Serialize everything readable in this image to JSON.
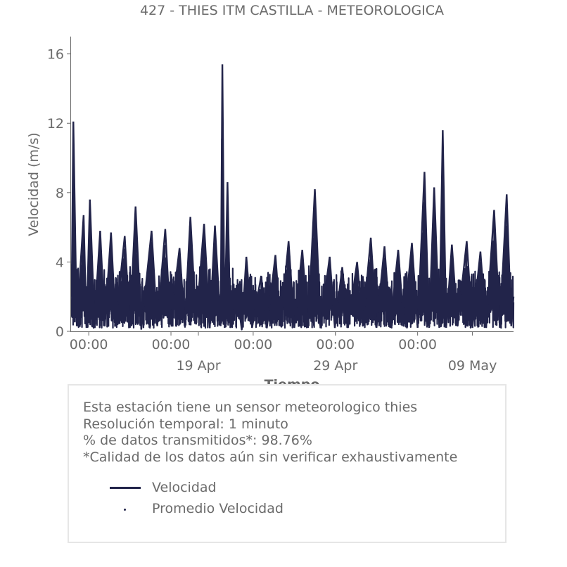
{
  "chart_data": {
    "type": "line",
    "title": "427 - THIES ITM CASTILLA - METEOROLOGICA",
    "xlabel": "Tiempo",
    "ylabel": "Velocidad (m/s)",
    "ylim": [
      0,
      17
    ],
    "yticks": [
      0,
      4,
      8,
      12,
      16
    ],
    "xlim": [
      "2025-04-09T17:00",
      "2025-05-12T00:00"
    ],
    "xticks_time": [
      {
        "t": "2025-04-11T00:00",
        "label": "00:00"
      },
      {
        "t": "2025-04-17T00:00",
        "label": "00:00"
      },
      {
        "t": "2025-04-23T00:00",
        "label": "00:00"
      },
      {
        "t": "2025-04-29T00:00",
        "label": "00:00"
      },
      {
        "t": "2025-05-05T00:00",
        "label": "00:00"
      }
    ],
    "xticks_date": [
      {
        "t": "2025-04-19T00:00",
        "label": "19 Apr"
      },
      {
        "t": "2025-04-29T00:00",
        "label": "29 Apr"
      },
      {
        "t": "2025-05-09T00:00",
        "label": "09 May"
      }
    ],
    "grid": false,
    "series": [
      {
        "name": "Velocidad",
        "color": "#22244a",
        "style": "line",
        "points": [
          [
            "2025-04-09T18:00",
            2.0
          ],
          [
            "2025-04-09T21:00",
            12.1
          ],
          [
            "2025-04-10T03:00",
            0.3
          ],
          [
            "2025-04-10T15:00",
            6.7
          ],
          [
            "2025-04-10T20:00",
            0.2
          ],
          [
            "2025-04-11T02:00",
            7.6
          ],
          [
            "2025-04-11T10:00",
            0.5
          ],
          [
            "2025-04-11T20:00",
            5.8
          ],
          [
            "2025-04-12T04:00",
            0.3
          ],
          [
            "2025-04-12T15:00",
            5.7
          ],
          [
            "2025-04-12T23:00",
            0.4
          ],
          [
            "2025-04-13T15:00",
            5.5
          ],
          [
            "2025-04-14T00:00",
            0.2
          ],
          [
            "2025-04-14T10:00",
            7.2
          ],
          [
            "2025-04-14T20:00",
            0.1
          ],
          [
            "2025-04-15T14:00",
            5.8
          ],
          [
            "2025-04-16T00:00",
            0.3
          ],
          [
            "2025-04-16T14:00",
            5.9
          ],
          [
            "2025-04-16T23:00",
            0.4
          ],
          [
            "2025-04-17T15:00",
            4.8
          ],
          [
            "2025-04-18T00:00",
            0.3
          ],
          [
            "2025-04-18T10:00",
            6.6
          ],
          [
            "2025-04-18T20:00",
            0.4
          ],
          [
            "2025-04-19T10:00",
            6.2
          ],
          [
            "2025-04-19T20:00",
            0.2
          ],
          [
            "2025-04-20T05:00",
            6.1
          ],
          [
            "2025-04-20T15:00",
            0.3
          ],
          [
            "2025-04-20T18:00",
            15.4
          ],
          [
            "2025-04-20T22:00",
            0.2
          ],
          [
            "2025-04-21T03:00",
            8.6
          ],
          [
            "2025-04-21T08:00",
            0.2
          ],
          [
            "2025-04-21T20:00",
            2.1
          ],
          [
            "2025-04-22T04:00",
            0.1
          ],
          [
            "2025-04-22T12:00",
            4.3
          ],
          [
            "2025-04-22T22:00",
            0.2
          ],
          [
            "2025-04-23T14:00",
            3.2
          ],
          [
            "2025-04-24T00:00",
            0.2
          ],
          [
            "2025-04-24T15:00",
            4.4
          ],
          [
            "2025-04-25T00:00",
            0.3
          ],
          [
            "2025-04-25T14:00",
            5.2
          ],
          [
            "2025-04-26T00:00",
            0.2
          ],
          [
            "2025-04-26T14:00",
            4.7
          ],
          [
            "2025-04-27T00:00",
            0.2
          ],
          [
            "2025-04-27T12:00",
            8.2
          ],
          [
            "2025-04-27T22:00",
            0.3
          ],
          [
            "2025-04-28T14:00",
            4.3
          ],
          [
            "2025-04-28T23:00",
            0.2
          ],
          [
            "2025-04-29T12:00",
            3.7
          ],
          [
            "2025-04-29T22:00",
            0.2
          ],
          [
            "2025-04-30T14:00",
            4.0
          ],
          [
            "2025-05-01T00:00",
            0.3
          ],
          [
            "2025-05-01T14:00",
            5.4
          ],
          [
            "2025-05-02T00:00",
            0.2
          ],
          [
            "2025-05-02T14:00",
            4.9
          ],
          [
            "2025-05-03T00:00",
            0.2
          ],
          [
            "2025-05-03T14:00",
            4.7
          ],
          [
            "2025-05-04T00:00",
            0.3
          ],
          [
            "2025-05-04T14:00",
            5.1
          ],
          [
            "2025-05-05T00:00",
            0.2
          ],
          [
            "2025-05-05T12:00",
            9.2
          ],
          [
            "2025-05-05T20:00",
            0.2
          ],
          [
            "2025-05-06T05:00",
            8.3
          ],
          [
            "2025-05-06T14:00",
            0.2
          ],
          [
            "2025-05-06T20:00",
            11.6
          ],
          [
            "2025-05-07T02:00",
            0.2
          ],
          [
            "2025-05-07T12:00",
            5.0
          ],
          [
            "2025-05-07T22:00",
            0.3
          ],
          [
            "2025-05-08T14:00",
            5.2
          ],
          [
            "2025-05-09T00:00",
            0.2
          ],
          [
            "2025-05-09T14:00",
            4.6
          ],
          [
            "2025-05-10T00:00",
            0.2
          ],
          [
            "2025-05-10T14:00",
            7.0
          ],
          [
            "2025-05-11T00:00",
            0.2
          ],
          [
            "2025-05-11T12:00",
            7.9
          ],
          [
            "2025-05-11T20:00",
            0.3
          ],
          [
            "2025-05-12T00:00",
            2.0
          ]
        ]
      },
      {
        "name": "Promedio Velocidad",
        "color": "#22244a",
        "style": "point",
        "points": []
      }
    ]
  },
  "info": {
    "line1": "Esta estación tiene un sensor meteorologico thies",
    "line2": "Resolución temporal: 1 minuto",
    "line3": "% de datos transmitidos*: 98.76%",
    "line4": "*Calidad de los datos aún sin verificar exhaustivamente"
  },
  "legend": {
    "item1": "Velocidad",
    "item2": "Promedio Velocidad"
  }
}
